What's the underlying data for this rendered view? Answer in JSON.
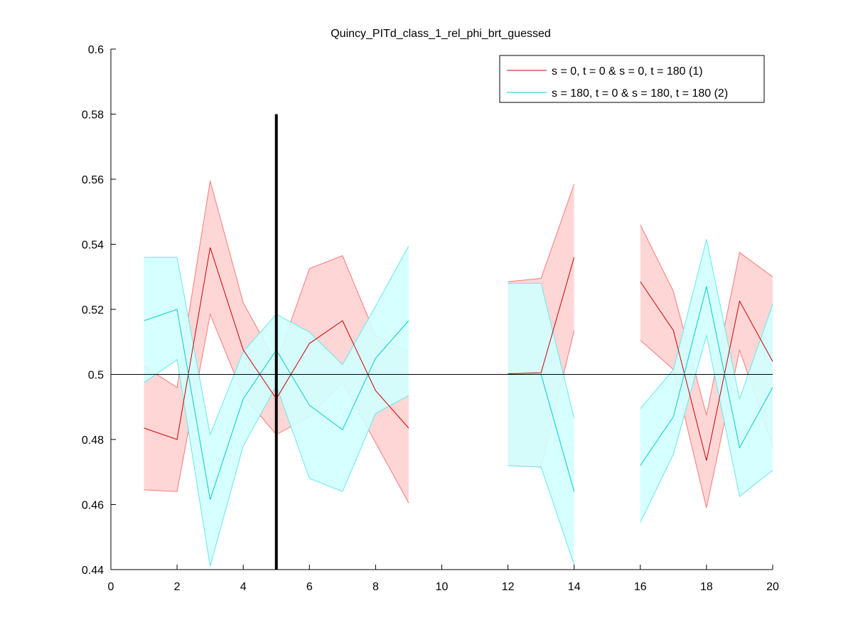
{
  "chart_data": {
    "type": "line",
    "title": "Quincy_PITd_class_1_rel_phi_brt_guessed",
    "xlabel": "",
    "ylabel": "",
    "xlim": [
      0,
      20
    ],
    "ylim": [
      0.44,
      0.6
    ],
    "x_ticks": [
      0,
      2,
      4,
      6,
      8,
      10,
      12,
      14,
      16,
      18,
      20
    ],
    "x_tick_labels": [
      "0",
      "2",
      "4",
      "6",
      "8",
      "10",
      "12",
      "14",
      "16",
      "18",
      "20"
    ],
    "y_ticks": [
      0.44,
      0.46,
      0.48,
      0.5,
      0.52,
      0.54,
      0.56,
      0.58,
      0.6
    ],
    "y_tick_labels": [
      "0.44",
      "0.46",
      "0.48",
      "0.5",
      "0.52",
      "0.54",
      "0.56",
      "0.58",
      "0.6"
    ],
    "grid": false,
    "legend_position": "top-right",
    "reference_line_y": 0.5,
    "marker_line": {
      "x": 5,
      "y_range": [
        0.44,
        0.58
      ],
      "color": "#000000"
    },
    "x": [
      1,
      2,
      3,
      4,
      5,
      6,
      7,
      8,
      9,
      10,
      11,
      12,
      13,
      14,
      15,
      16,
      17,
      18,
      19,
      20
    ],
    "series": [
      {
        "name": "s = 0, t = 0 & s = 0, t = 180 (1)",
        "line_color": "#cc0000",
        "band_fill": "#ffd6d6",
        "band_edge": "#ff7777",
        "values": [
          0.4835,
          0.48,
          0.539,
          0.5075,
          0.4925,
          0.5095,
          0.5165,
          0.495,
          0.4835,
          null,
          null,
          0.5002,
          0.5005,
          0.536,
          null,
          0.5285,
          0.5135,
          0.4735,
          0.5225,
          0.504
        ],
        "upper": [
          0.5025,
          0.496,
          0.5595,
          0.522,
          0.5035,
          0.5325,
          0.5365,
          0.512,
          0.507,
          null,
          null,
          0.5285,
          0.5295,
          0.5585,
          null,
          0.546,
          0.5255,
          0.4875,
          0.5375,
          0.53
        ],
        "lower": [
          0.4645,
          0.464,
          0.5185,
          0.4935,
          0.4815,
          0.487,
          0.4975,
          0.479,
          0.4605,
          null,
          null,
          0.472,
          0.4715,
          0.5135,
          null,
          0.5105,
          0.5015,
          0.459,
          0.5075,
          0.478
        ]
      },
      {
        "name": "s = 180, t = 0 & s = 180, t = 180 (2)",
        "line_color": "#00cccc",
        "band_fill": "#d2ffff",
        "band_edge": "#66e8e8",
        "values": [
          0.5165,
          0.52,
          0.4615,
          0.4925,
          0.5075,
          0.4905,
          0.483,
          0.505,
          0.5165,
          null,
          null,
          null,
          0.5,
          0.464,
          null,
          0.472,
          0.487,
          0.527,
          0.4775,
          0.496
        ],
        "upper": [
          0.536,
          0.536,
          0.4815,
          0.507,
          0.5185,
          0.513,
          0.503,
          0.521,
          0.5395,
          null,
          null,
          0.528,
          0.528,
          0.4865,
          null,
          0.4895,
          0.5015,
          0.5415,
          0.4925,
          0.5215
        ],
        "lower": [
          0.4975,
          0.5045,
          0.441,
          0.478,
          0.4965,
          0.468,
          0.464,
          0.488,
          0.4935,
          null,
          null,
          0.472,
          0.4715,
          0.4415,
          null,
          0.4545,
          0.4755,
          0.512,
          0.4625,
          0.4705
        ]
      }
    ]
  }
}
